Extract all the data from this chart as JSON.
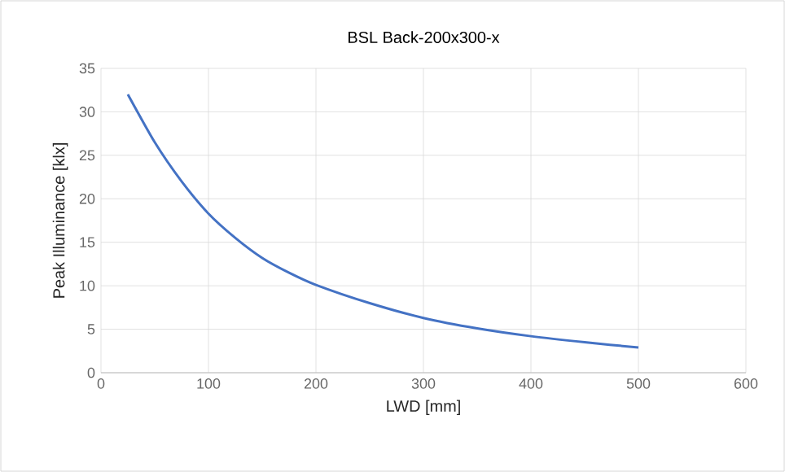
{
  "chart_data": {
    "type": "line",
    "title": "BSL Back-200x300-x",
    "xlabel": "LWD [mm]",
    "ylabel": "Peak Illuminance [klx]",
    "series": [
      {
        "color": "#4472c4",
        "x": [
          25,
          50,
          75,
          100,
          125,
          150,
          175,
          200,
          250,
          300,
          350,
          400,
          450,
          500
        ],
        "values": [
          32,
          26.5,
          22,
          18.3,
          15.5,
          13.2,
          11.5,
          10.1,
          8,
          6.3,
          5.1,
          4.2,
          3.5,
          2.9
        ]
      }
    ],
    "xlim": [
      0,
      600
    ],
    "xticks": [
      0,
      100,
      200,
      300,
      400,
      500,
      600
    ],
    "ylim": [
      0,
      35
    ],
    "yticks": [
      0,
      5,
      10,
      15,
      20,
      25,
      30,
      35
    ],
    "grid": true,
    "marker": "none",
    "line_style": "solid"
  }
}
